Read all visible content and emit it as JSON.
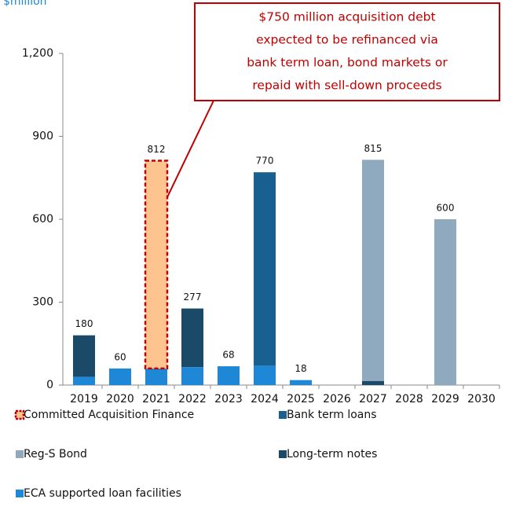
{
  "chart_data": {
    "type": "stacked_bar",
    "unit_label": "$million",
    "annotation": [
      "$750 million acquisition debt",
      "expected to be refinanced via",
      "bank term loan, bond markets or",
      "repaid with sell-down proceeds"
    ],
    "categories": [
      "2019",
      "2020",
      "2021",
      "2022",
      "2023",
      "2024",
      "2025",
      "2026",
      "2027",
      "2028",
      "2029",
      "2030"
    ],
    "series": [
      {
        "name": "ECA supported loan facilities",
        "color": "#1e88d6",
        "values": [
          30,
          60,
          60,
          65,
          68,
          70,
          18,
          null,
          null,
          null,
          null,
          null
        ]
      },
      {
        "name": "Long-term notes",
        "color": "#1b4a68",
        "values": [
          150,
          null,
          null,
          212,
          null,
          null,
          null,
          null,
          15,
          null,
          null,
          null
        ]
      },
      {
        "name": "Bank term loans",
        "color": "#17608f",
        "values": [
          null,
          null,
          null,
          null,
          null,
          700,
          null,
          null,
          null,
          null,
          null,
          null
        ]
      },
      {
        "name": "Reg-S Bond",
        "color": "#8fa9bf",
        "values": [
          null,
          null,
          null,
          null,
          null,
          null,
          null,
          null,
          800,
          null,
          600,
          null
        ]
      },
      {
        "name": "Committed Acquisition Finance",
        "color": "#fdc48f",
        "border": "#c00000",
        "values": [
          null,
          null,
          752,
          null,
          null,
          null,
          null,
          null,
          null,
          null,
          null,
          null
        ]
      }
    ],
    "totals": [
      180,
      60,
      812,
      277,
      68,
      770,
      18,
      null,
      815,
      null,
      600,
      null
    ],
    "legend_order": [
      4,
      2,
      3,
      1,
      0
    ],
    "ylim": [
      0,
      1200
    ],
    "yticks": [
      0,
      300,
      600,
      900,
      {
        "value": 1200,
        "label": "1,200"
      }
    ]
  }
}
